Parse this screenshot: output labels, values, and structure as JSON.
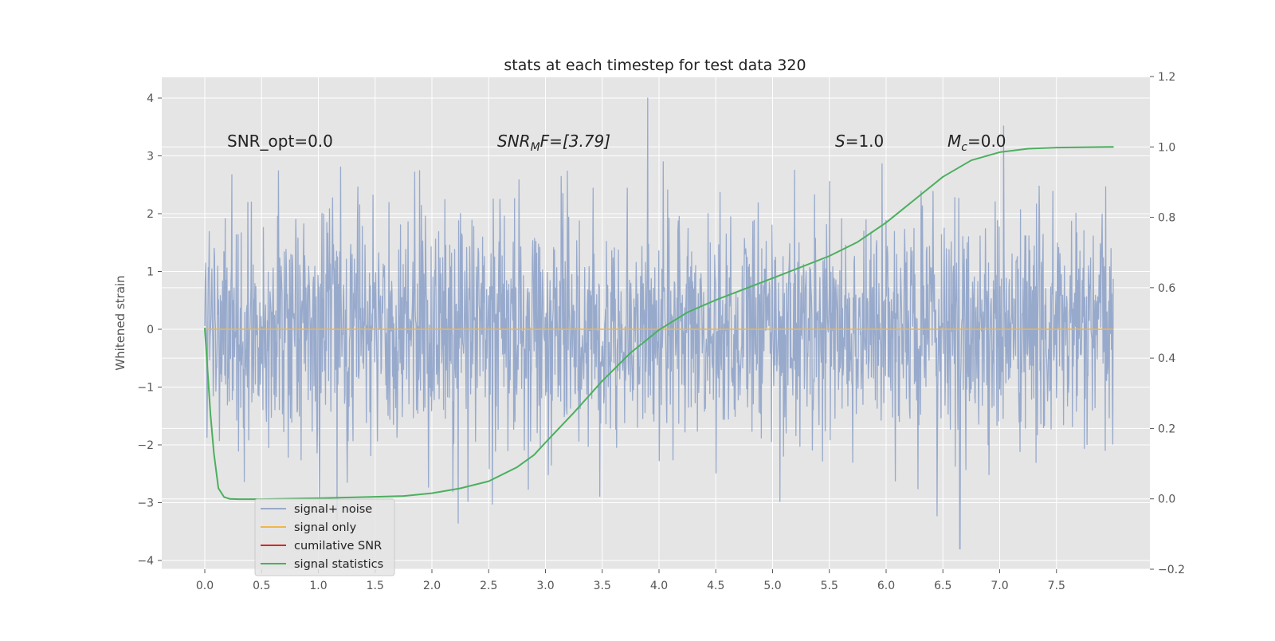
{
  "chart_data": {
    "type": "line",
    "title": "stats at each timestep for test data 320",
    "ylabel": "Whitened strain",
    "xlabel": "",
    "xlim": [
      -0.38,
      8.42
    ],
    "ylim": [
      -4.2,
      4.4
    ],
    "y2lim": [
      -0.2,
      1.2
    ],
    "x_ticks": [
      "0.0",
      "0.5",
      "1.0",
      "1.5",
      "2.0",
      "2.5",
      "3.0",
      "3.5",
      "4.0",
      "4.5",
      "5.0",
      "5.5",
      "6.0",
      "6.5",
      "7.0",
      "7.5"
    ],
    "y_ticks": [
      "−4",
      "−3",
      "−2",
      "−1",
      "0",
      "1",
      "2",
      "3",
      "4"
    ],
    "y2_ticks": [
      "−0.2",
      "0.0",
      "0.2",
      "0.4",
      "0.6",
      "0.8",
      "1.0",
      "1.2"
    ],
    "grid": true,
    "legend_position": "lower-left",
    "annotations": {
      "snr_opt": "SNR_opt=0.0",
      "snr_mf_main": "SNR",
      "snr_mf_sub": "M",
      "snr_mf_rest": "F=[3.79]",
      "s_main": "S",
      "s_rest": "=1.0",
      "mc_main": "M",
      "mc_sub": "c",
      "mc_rest": "=0.0"
    },
    "colors": {
      "background": "#e5e5e5",
      "grid": "#ffffff",
      "noise": "#98aacc",
      "signal": "#f0b54a",
      "snr": "#d62728",
      "stats": "#4caf5f"
    },
    "series": [
      {
        "name": "signal+ noise",
        "axis": "left",
        "x_range": [
          0.0,
          8.0
        ],
        "sample_count": 2048,
        "amplitude_range": [
          -3.8,
          4.0
        ],
        "note_values": "dense whitened noise trace, approx. spanning −2 to 2 with spikes to 4.0 near x=3.9 and −3.8 near x=6.65"
      },
      {
        "name": "signal only",
        "axis": "left",
        "x": [
          0.0,
          8.0
        ],
        "values": [
          0.0,
          0.0
        ]
      },
      {
        "name": "cumilative SNR",
        "axis": "left",
        "x": [],
        "values": []
      },
      {
        "name": "signal statistics",
        "axis": "right",
        "x": [
          0.0,
          0.05,
          0.08,
          0.12,
          0.17,
          0.22,
          0.3,
          0.5,
          1.0,
          1.5,
          1.75,
          2.0,
          2.25,
          2.5,
          2.75,
          2.9,
          3.0,
          3.25,
          3.5,
          3.75,
          4.0,
          4.25,
          4.5,
          5.0,
          5.5,
          5.75,
          6.0,
          6.25,
          6.5,
          6.75,
          7.0,
          7.25,
          7.5,
          8.0
        ],
        "values": [
          0.485,
          0.24,
          0.13,
          0.03,
          0.005,
          0.0,
          -0.001,
          -0.001,
          0.002,
          0.006,
          0.008,
          0.016,
          0.03,
          0.05,
          0.09,
          0.125,
          0.16,
          0.245,
          0.335,
          0.415,
          0.48,
          0.53,
          0.565,
          0.627,
          0.69,
          0.73,
          0.785,
          0.85,
          0.915,
          0.962,
          0.985,
          0.995,
          0.998,
          1.0
        ]
      }
    ]
  }
}
